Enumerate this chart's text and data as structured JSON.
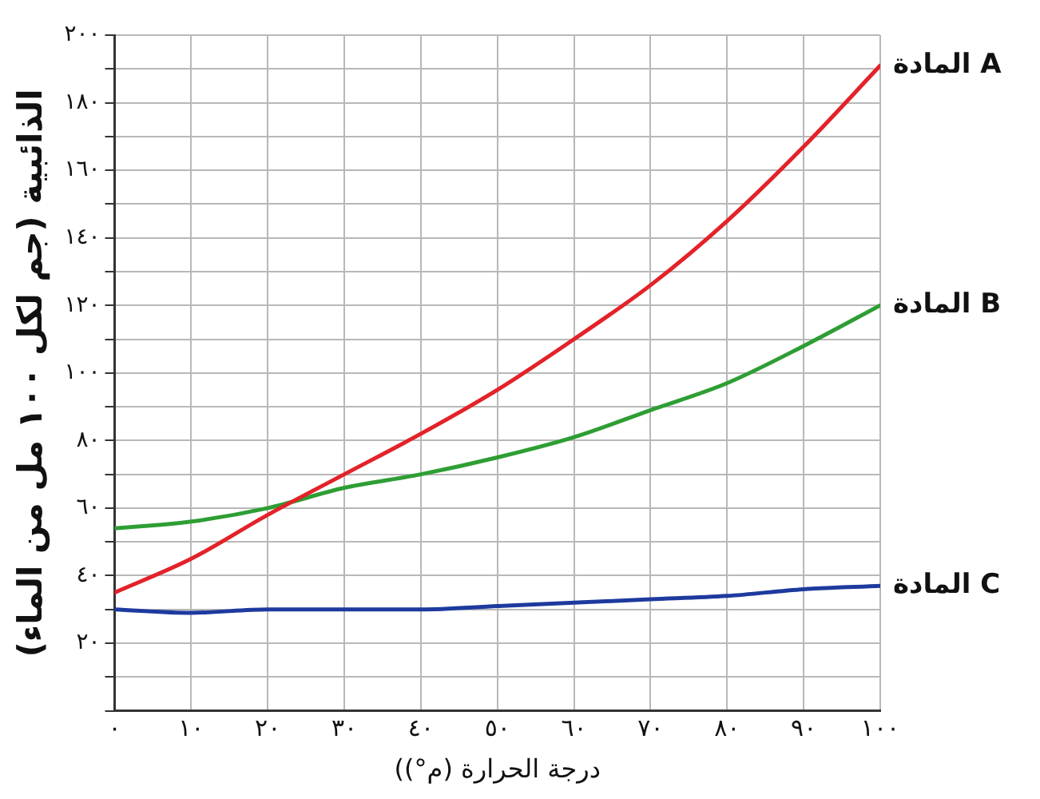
{
  "chart_data": {
    "type": "line",
    "xlabel": "(درجة الحرارة (م°)",
    "ylabel": "الذائبية (جم لكل ١٠٠ مل من الماء)",
    "x": [
      0,
      10,
      20,
      30,
      40,
      50,
      60,
      70,
      80,
      90,
      100
    ],
    "series": [
      {
        "name": "المادة A",
        "color": "#e32229",
        "values": [
          35,
          45,
          58,
          70,
          82,
          95,
          110,
          126,
          145,
          167,
          191
        ]
      },
      {
        "name": "المادة B",
        "color": "#2e9e34",
        "values": [
          54,
          56,
          60,
          66,
          70,
          75,
          81,
          89,
          97,
          108,
          120
        ]
      },
      {
        "name": "المادة C",
        "color": "#1d3a9e",
        "values": [
          30,
          29,
          30,
          30,
          30,
          31,
          32,
          33,
          34,
          36,
          37
        ]
      }
    ],
    "xlim": [
      0,
      100
    ],
    "xticks": [
      {
        "value": 0,
        "label": "٠"
      },
      {
        "value": 10,
        "label": "١٠"
      },
      {
        "value": 20,
        "label": "٢٠"
      },
      {
        "value": 30,
        "label": "٣٠"
      },
      {
        "value": 40,
        "label": "٤٠"
      },
      {
        "value": 50,
        "label": "٥٠"
      },
      {
        "value": 60,
        "label": "٦٠"
      },
      {
        "value": 70,
        "label": "٧٠"
      },
      {
        "value": 80,
        "label": "٨٠"
      },
      {
        "value": 90,
        "label": "٩٠"
      },
      {
        "value": 100,
        "label": "١٠٠"
      }
    ],
    "ylim": [
      0,
      200
    ],
    "yticks": [
      {
        "value": 0,
        "label": null
      },
      {
        "value": 10,
        "label": null
      },
      {
        "value": 20,
        "label": "٢٠"
      },
      {
        "value": 30,
        "label": null
      },
      {
        "value": 40,
        "label": "٤٠"
      },
      {
        "value": 50,
        "label": null
      },
      {
        "value": 60,
        "label": "٦٠"
      },
      {
        "value": 70,
        "label": null
      },
      {
        "value": 80,
        "label": "٨٠"
      },
      {
        "value": 90,
        "label": null
      },
      {
        "value": 100,
        "label": "١٠٠"
      },
      {
        "value": 110,
        "label": null
      },
      {
        "value": 120,
        "label": "١٢٠"
      },
      {
        "value": 130,
        "label": null
      },
      {
        "value": 140,
        "label": "١٤٠"
      },
      {
        "value": 150,
        "label": null
      },
      {
        "value": 160,
        "label": "١٦٠"
      },
      {
        "value": 170,
        "label": null
      },
      {
        "value": 180,
        "label": "١٨٠"
      },
      {
        "value": 190,
        "label": null
      },
      {
        "value": 200,
        "label": "٢٠٠"
      }
    ],
    "grid": true,
    "legend": false,
    "marker": "none",
    "line_style": "solid"
  }
}
